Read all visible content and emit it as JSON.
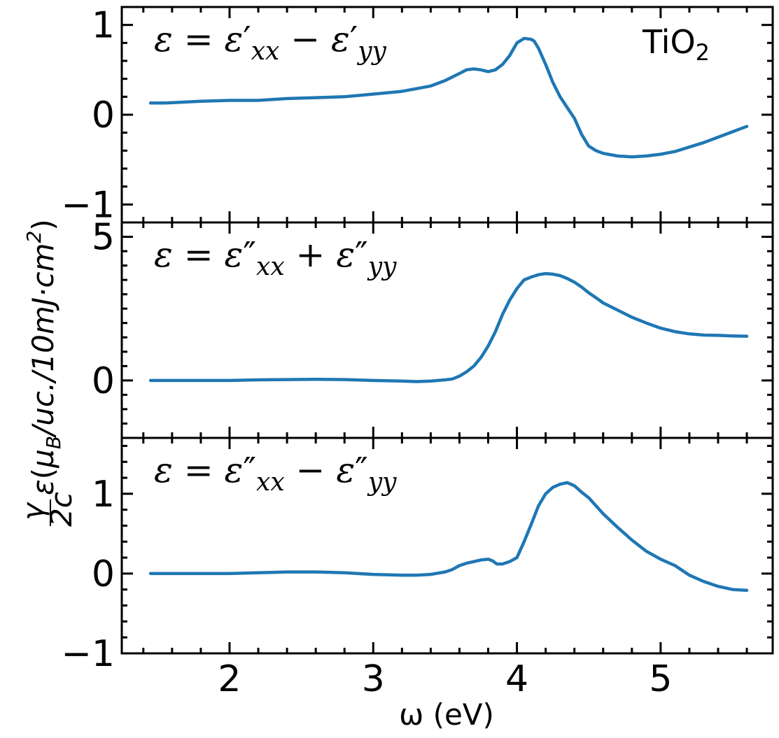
{
  "chart_data": {
    "type": "line",
    "material_label": "TiO",
    "material_subscript": "2",
    "xlabel": "ω (eV)",
    "ylabel": "γ/2c ε(μ_B/uc./10mJ·cm²)",
    "ylabel_parts": {
      "gamma": "γ",
      "two_c": "2c",
      "epsilon": "ε",
      "open": "(",
      "mu": "μ",
      "mu_sub": "B",
      "unit_mid": "/uc./10mJ·cm",
      "unit_sup": "2",
      "close": ")"
    },
    "xlim": [
      1.25,
      5.78
    ],
    "xticks": [
      2,
      3,
      4,
      5
    ],
    "xtick_labels": [
      "2",
      "3",
      "4",
      "5"
    ],
    "color": "#1f77b4",
    "panels": [
      {
        "id": "top",
        "annotation": {
          "lhs": "ε = ε",
          "prime": "′",
          "sub1": "xx",
          "op": " − ε",
          "prime2": "′",
          "sub2": "yy"
        },
        "ylim": [
          -1.2,
          1.2
        ],
        "yticks": [
          -1,
          0,
          1
        ],
        "ytick_labels": [
          "−1",
          "0",
          "1"
        ],
        "series": {
          "name": "ε′xx − ε′yy",
          "x": [
            1.45,
            1.55,
            1.8,
            2.0,
            2.2,
            2.4,
            2.6,
            2.8,
            3.0,
            3.2,
            3.4,
            3.5,
            3.6,
            3.65,
            3.7,
            3.75,
            3.8,
            3.85,
            3.9,
            3.95,
            4.0,
            4.05,
            4.1,
            4.12,
            4.15,
            4.2,
            4.25,
            4.3,
            4.35,
            4.4,
            4.45,
            4.5,
            4.55,
            4.6,
            4.7,
            4.8,
            4.9,
            5.0,
            5.1,
            5.2,
            5.3,
            5.4,
            5.5,
            5.6
          ],
          "y": [
            0.13,
            0.13,
            0.15,
            0.16,
            0.16,
            0.18,
            0.19,
            0.2,
            0.23,
            0.26,
            0.32,
            0.38,
            0.46,
            0.5,
            0.51,
            0.5,
            0.48,
            0.5,
            0.56,
            0.66,
            0.8,
            0.85,
            0.84,
            0.82,
            0.74,
            0.56,
            0.36,
            0.2,
            0.08,
            -0.04,
            -0.22,
            -0.35,
            -0.4,
            -0.43,
            -0.46,
            -0.47,
            -0.46,
            -0.44,
            -0.41,
            -0.36,
            -0.31,
            -0.25,
            -0.19,
            -0.13
          ]
        }
      },
      {
        "id": "middle",
        "annotation": {
          "lhs": "ε = ε",
          "prime": "″",
          "sub1": "xx",
          "op": " + ε",
          "prime2": "″",
          "sub2": "yy"
        },
        "ylim": [
          -2,
          5.5
        ],
        "yticks": [
          0,
          5
        ],
        "ytick_labels": [
          "0",
          "5"
        ],
        "series": {
          "name": "ε″xx + ε″yy",
          "x": [
            1.45,
            1.6,
            1.8,
            2.0,
            2.2,
            2.4,
            2.6,
            2.8,
            3.0,
            3.2,
            3.3,
            3.4,
            3.5,
            3.55,
            3.6,
            3.65,
            3.7,
            3.75,
            3.8,
            3.85,
            3.9,
            3.95,
            4.0,
            4.05,
            4.1,
            4.15,
            4.2,
            4.25,
            4.3,
            4.35,
            4.4,
            4.45,
            4.5,
            4.55,
            4.6,
            4.7,
            4.8,
            4.9,
            5.0,
            5.1,
            5.2,
            5.3,
            5.4,
            5.5,
            5.6
          ],
          "y": [
            0.0,
            0.0,
            0.0,
            0.0,
            0.02,
            0.03,
            0.04,
            0.03,
            0.0,
            -0.02,
            -0.04,
            -0.02,
            0.02,
            0.05,
            0.15,
            0.3,
            0.5,
            0.8,
            1.2,
            1.7,
            2.3,
            2.8,
            3.2,
            3.5,
            3.6,
            3.68,
            3.72,
            3.7,
            3.65,
            3.55,
            3.42,
            3.25,
            3.05,
            2.88,
            2.7,
            2.45,
            2.2,
            2.0,
            1.82,
            1.7,
            1.62,
            1.58,
            1.57,
            1.55,
            1.54
          ]
        }
      },
      {
        "id": "bottom",
        "annotation": {
          "lhs": "ε = ε",
          "prime": "″",
          "sub1": "xx",
          "op": " − ε",
          "prime2": "″",
          "sub2": "yy"
        },
        "ylim": [
          -1,
          1.7
        ],
        "yticks": [
          -1,
          0,
          1
        ],
        "ytick_labels": [
          "−1",
          "0",
          "1"
        ],
        "series": {
          "name": "ε″xx − ε″yy",
          "x": [
            1.45,
            1.6,
            1.8,
            2.0,
            2.2,
            2.4,
            2.6,
            2.8,
            3.0,
            3.2,
            3.3,
            3.4,
            3.5,
            3.55,
            3.6,
            3.65,
            3.7,
            3.75,
            3.8,
            3.83,
            3.86,
            3.9,
            3.95,
            4.0,
            4.05,
            4.1,
            4.15,
            4.2,
            4.25,
            4.3,
            4.35,
            4.4,
            4.45,
            4.5,
            4.55,
            4.6,
            4.7,
            4.8,
            4.9,
            5.0,
            5.1,
            5.2,
            5.3,
            5.4,
            5.5,
            5.6
          ],
          "y": [
            0.0,
            0.0,
            0.0,
            0.0,
            0.01,
            0.02,
            0.02,
            0.01,
            -0.01,
            -0.02,
            -0.02,
            -0.01,
            0.02,
            0.05,
            0.1,
            0.13,
            0.15,
            0.17,
            0.18,
            0.16,
            0.12,
            0.12,
            0.15,
            0.2,
            0.4,
            0.62,
            0.85,
            1.0,
            1.08,
            1.12,
            1.14,
            1.1,
            1.02,
            0.95,
            0.85,
            0.75,
            0.58,
            0.42,
            0.28,
            0.18,
            0.1,
            -0.02,
            -0.1,
            -0.16,
            -0.2,
            -0.21
          ]
        }
      }
    ]
  }
}
